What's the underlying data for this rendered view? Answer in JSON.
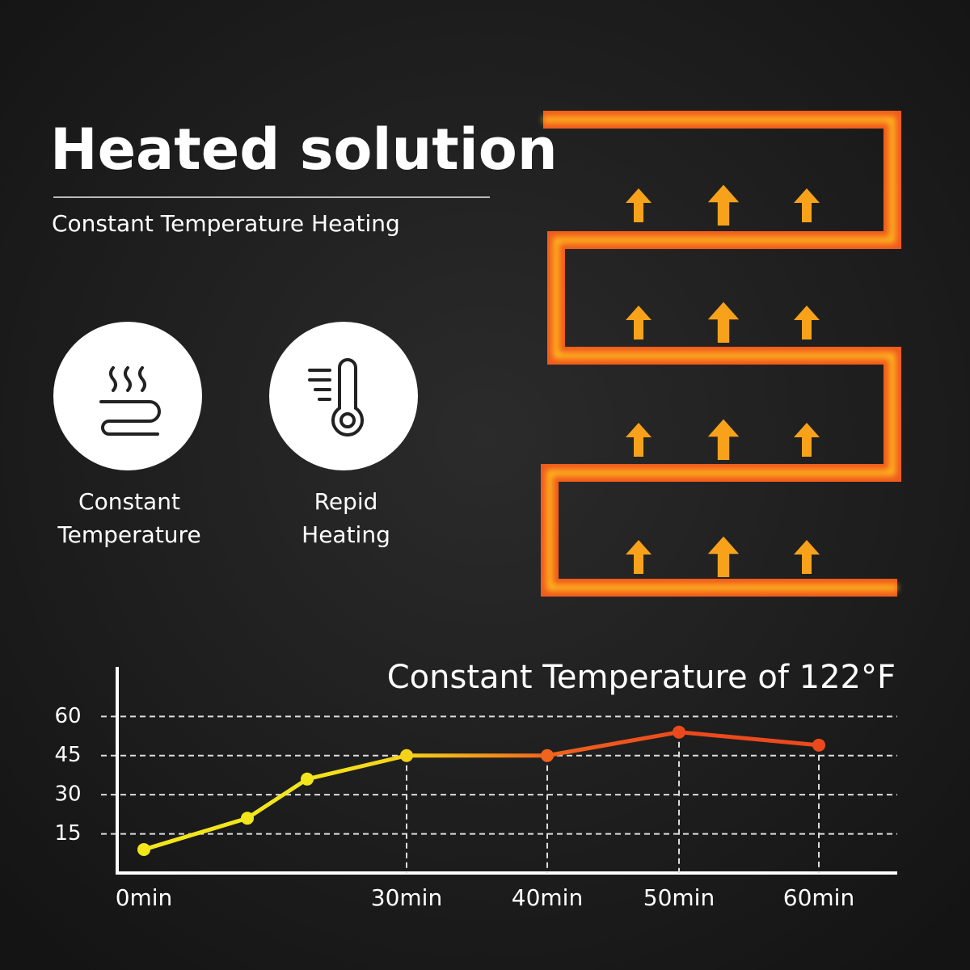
{
  "header": {
    "title": "Heated solution",
    "subtitle": "Constant Temperature Heating"
  },
  "features": [
    {
      "lines": [
        "Constant",
        "Temperature"
      ]
    },
    {
      "lines": [
        "Repid",
        "Heating"
      ]
    }
  ],
  "chart_data": {
    "type": "line",
    "title": "Constant Temperature of 122°F",
    "categories": [
      "0min",
      null,
      null,
      "30min",
      "40min",
      "50min",
      "60min"
    ],
    "series": [
      {
        "values": [
          9,
          21,
          36,
          45,
          45,
          54,
          49
        ],
        "colors": [
          "#f3e51c",
          "#f3e51c",
          "#f3e51c",
          "#f5d21a",
          "#f0641e",
          "#ec4a1c",
          "#ec4a1c"
        ]
      }
    ],
    "ylim": [
      0,
      79
    ],
    "yticks": [
      15,
      30,
      45,
      60
    ],
    "grid": true
  }
}
